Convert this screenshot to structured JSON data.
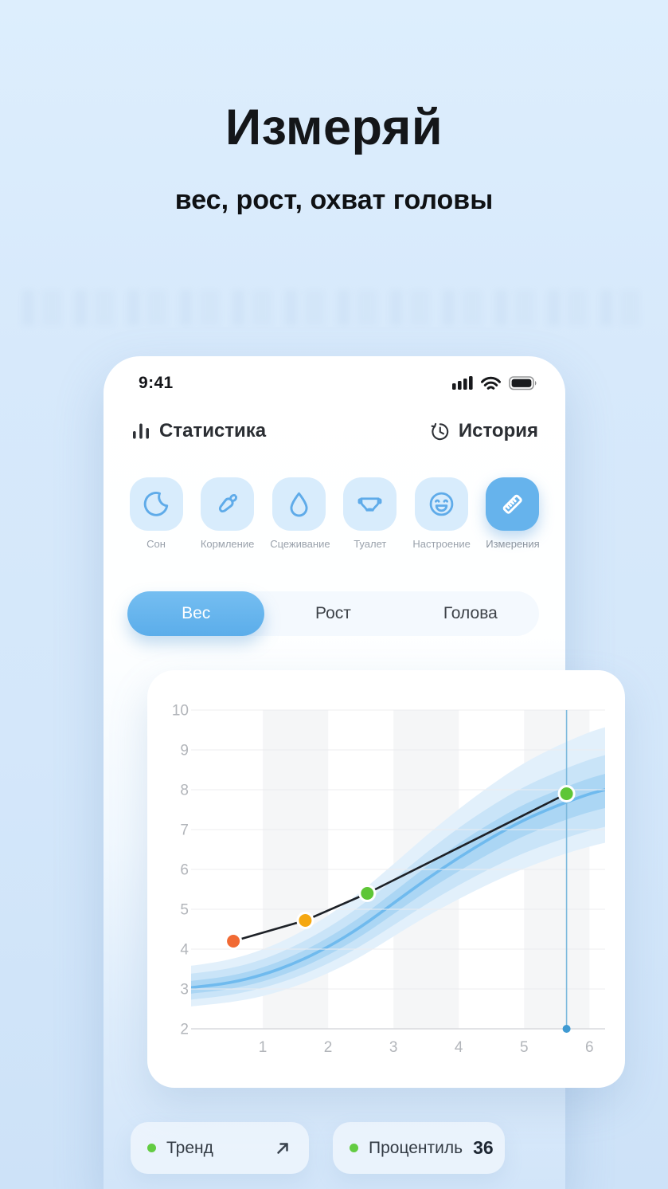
{
  "hero": {
    "title": "Измеряй",
    "subtitle": "вес, рост, охват головы"
  },
  "phone": {
    "status_bar": {
      "time": "9:41",
      "icons": [
        "cellular-signal-icon",
        "wifi-icon",
        "battery-full-icon"
      ]
    },
    "header": {
      "title": "Статистика",
      "title_icon": "bar-chart-icon",
      "history_label": "История",
      "history_icon": "history-clock-icon"
    },
    "categories": [
      {
        "label": "Сон",
        "icon": "moon-icon",
        "selected": false
      },
      {
        "label": "Кормление",
        "icon": "carrot-icon",
        "selected": false
      },
      {
        "label": "Сцеживание",
        "icon": "water-drop-icon",
        "selected": false
      },
      {
        "label": "Туалет",
        "icon": "diaper-icon",
        "selected": false
      },
      {
        "label": "Настроение",
        "icon": "laughing-face-icon",
        "selected": false
      },
      {
        "label": "Измерения",
        "icon": "ruler-icon",
        "selected": true
      }
    ],
    "tabs": [
      {
        "label": "Вес",
        "selected": true
      },
      {
        "label": "Рост",
        "selected": false
      },
      {
        "label": "Голова",
        "selected": false
      }
    ],
    "footer": {
      "trend_label": "Тренд",
      "trend_icon": "arrow-up-right-icon",
      "percentile_label": "Процентиль",
      "percentile_value": "36",
      "dot_color": "#63cc42"
    }
  },
  "colors": {
    "page_bg": "#d7e9fb",
    "accent_blue": "#63b1ec",
    "tile_bg": "#d8ecfc",
    "tile_icon_stroke": "#5fabe9",
    "selected_tile_bg": "#66b3ec",
    "card_bg": "#ffffff",
    "title_text": "#141619"
  },
  "chart_data": {
    "type": "line",
    "title": "",
    "xlabel": "",
    "ylabel": "",
    "xlim": [
      0,
      6.24
    ],
    "ylim": [
      2,
      10
    ],
    "xticks": [
      1,
      2,
      3,
      4,
      5,
      6
    ],
    "yticks": [
      2,
      3,
      4,
      5,
      6,
      7,
      8,
      9,
      10
    ],
    "grid": true,
    "stripe_ranges": [
      [
        1,
        2
      ],
      [
        3,
        4
      ],
      [
        5,
        6
      ]
    ],
    "stripe_color": "#f5f6f7",
    "grid_color": "#ececef",
    "axis_color": "#d9dade",
    "tick_color": "#b2b5ba",
    "band_x": [
      -0.12,
      0,
      0.5,
      1,
      1.5,
      2,
      2.5,
      3,
      3.5,
      4,
      4.5,
      5,
      5.5,
      6,
      6.24
    ],
    "bands": [
      {
        "name": "percentile-outer",
        "color": "#e2f0fb",
        "upper": [
          3.58,
          3.6,
          3.73,
          3.98,
          4.35,
          4.83,
          5.43,
          6.13,
          6.85,
          7.52,
          8.13,
          8.68,
          9.1,
          9.45,
          9.57
        ],
        "lower": [
          2.56,
          2.58,
          2.66,
          2.81,
          3.06,
          3.39,
          3.8,
          4.32,
          4.82,
          5.26,
          5.67,
          6.03,
          6.33,
          6.58,
          6.67
        ]
      },
      {
        "name": "percentile-mid",
        "color": "#c9e4f8",
        "upper": [
          3.38,
          3.4,
          3.51,
          3.73,
          4.08,
          4.53,
          5.08,
          5.74,
          6.42,
          7.05,
          7.6,
          8.08,
          8.45,
          8.76,
          8.87
        ],
        "lower": [
          2.73,
          2.75,
          2.84,
          3.02,
          3.28,
          3.63,
          4.07,
          4.6,
          5.13,
          5.61,
          6.04,
          6.42,
          6.72,
          6.98,
          7.07
        ]
      },
      {
        "name": "percentile-inner",
        "color": "#abd6f4",
        "upper": [
          3.2,
          3.22,
          3.32,
          3.53,
          3.85,
          4.28,
          4.8,
          5.43,
          6.07,
          6.66,
          7.18,
          7.64,
          7.99,
          8.29,
          8.4
        ],
        "lower": [
          2.88,
          2.9,
          2.99,
          3.18,
          3.46,
          3.84,
          4.31,
          4.88,
          5.45,
          5.96,
          6.43,
          6.85,
          7.17,
          7.45,
          7.54
        ]
      }
    ],
    "median": {
      "name": "percentile-50",
      "color": "#6fbaee",
      "values": [
        3.03,
        3.05,
        3.15,
        3.35,
        3.65,
        4.05,
        4.55,
        5.15,
        5.75,
        6.3,
        6.8,
        7.25,
        7.6,
        7.9,
        8.0
      ]
    },
    "measurements": {
      "x": [
        0.55,
        1.65,
        2.6,
        5.65
      ],
      "y": [
        4.2,
        4.72,
        5.4,
        7.9
      ],
      "point_colors": [
        "#f16a34",
        "#f5a812",
        "#5ec636",
        "#5ec636"
      ],
      "line_color": "#1d2127"
    },
    "cursor": {
      "x": 5.65,
      "color": "#7db9dd",
      "dot_color": "#3f9ad2"
    },
    "legend": []
  }
}
